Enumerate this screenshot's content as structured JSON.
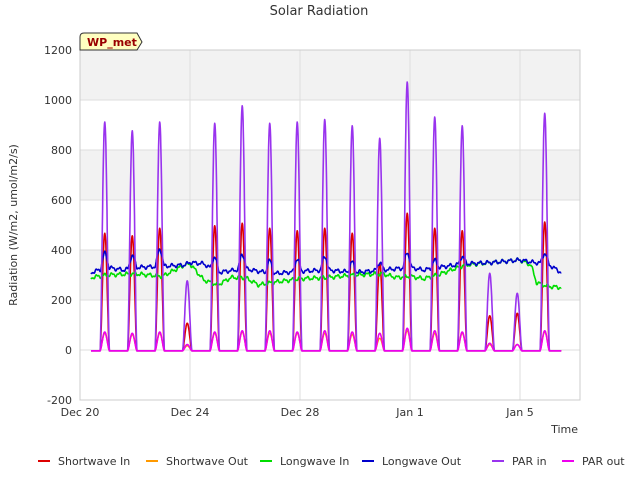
{
  "chart_data": {
    "type": "line",
    "title": "Solar Radiation",
    "xlabel": "Time",
    "ylabel": "Radiation (W/m2, umol/m2/s)",
    "station_badge": "WP_met",
    "xlim": [
      0,
      18
    ],
    "ylim": [
      -200,
      1200
    ],
    "x_ticks": [
      {
        "x": 0,
        "label": "Dec 20"
      },
      {
        "x": 4,
        "label": "Dec 24"
      },
      {
        "x": 8,
        "label": "Dec 28"
      },
      {
        "x": 12,
        "label": "Jan 1"
      },
      {
        "x": 16,
        "label": "Jan 5"
      }
    ],
    "y_ticks": [
      -200,
      0,
      200,
      400,
      600,
      800,
      1000,
      1200
    ],
    "grid": true,
    "shaded_bands": [
      [
        200,
        400
      ],
      [
        600,
        800
      ],
      [
        1000,
        1200
      ]
    ],
    "legend_placement": "bottom",
    "day_centers": [
      0.9,
      1.9,
      2.9,
      3.9,
      4.9,
      5.9,
      6.9,
      7.9,
      8.9,
      9.9,
      10.9,
      11.9,
      12.9,
      13.9,
      14.9,
      15.9,
      16.9
    ],
    "series": [
      {
        "name": "Shortwave In",
        "color": "#dd0000",
        "width": 1.6,
        "kind": "diurnal",
        "peaks": [
          470,
          460,
          490,
          110,
          500,
          510,
          490,
          480,
          490,
          470,
          350,
          550,
          490,
          480,
          140,
          150,
          515
        ]
      },
      {
        "name": "Shortwave Out",
        "color": "#ff9900",
        "width": 1.4,
        "kind": "diurnal",
        "peaks": [
          70,
          65,
          70,
          20,
          70,
          75,
          70,
          70,
          70,
          65,
          50,
          80,
          70,
          70,
          25,
          25,
          75
        ]
      },
      {
        "name": "Longwave In",
        "color": "#00dd00",
        "width": 1.6,
        "kind": "steady",
        "points": [
          [
            0.4,
            290
          ],
          [
            1.0,
            300
          ],
          [
            2.0,
            305
          ],
          [
            3.0,
            295
          ],
          [
            3.8,
            340
          ],
          [
            4.0,
            345
          ],
          [
            4.5,
            280
          ],
          [
            5.0,
            260
          ],
          [
            5.5,
            290
          ],
          [
            6.0,
            290
          ],
          [
            6.5,
            260
          ],
          [
            7.0,
            270
          ],
          [
            8.0,
            285
          ],
          [
            9.0,
            290
          ],
          [
            10.0,
            300
          ],
          [
            11.0,
            305
          ],
          [
            11.5,
            290
          ],
          [
            12.0,
            295
          ],
          [
            12.5,
            285
          ],
          [
            13.0,
            300
          ],
          [
            13.5,
            320
          ],
          [
            14.0,
            340
          ],
          [
            15.0,
            350
          ],
          [
            16.0,
            360
          ],
          [
            16.4,
            340
          ],
          [
            16.6,
            270
          ],
          [
            17.0,
            255
          ],
          [
            17.5,
            250
          ]
        ]
      },
      {
        "name": "Longwave Out",
        "color": "#0000cc",
        "width": 1.6,
        "kind": "steady",
        "points": [
          [
            0.4,
            310
          ],
          [
            1.0,
            330
          ],
          [
            1.6,
            320
          ],
          [
            2.0,
            330
          ],
          [
            3.0,
            335
          ],
          [
            3.8,
            340
          ],
          [
            4.0,
            350
          ],
          [
            4.5,
            345
          ],
          [
            5.0,
            310
          ],
          [
            6.0,
            325
          ],
          [
            6.5,
            315
          ],
          [
            7.0,
            305
          ],
          [
            8.0,
            315
          ],
          [
            9.0,
            320
          ],
          [
            10.0,
            310
          ],
          [
            11.0,
            320
          ],
          [
            12.0,
            330
          ],
          [
            12.5,
            320
          ],
          [
            13.0,
            330
          ],
          [
            14.0,
            345
          ],
          [
            15.0,
            350
          ],
          [
            16.0,
            360
          ],
          [
            16.5,
            350
          ],
          [
            17.0,
            345
          ],
          [
            17.5,
            310
          ]
        ],
        "day_bumps": [
          60,
          50,
          70,
          0,
          55,
          60,
          50,
          50,
          55,
          40,
          30,
          60,
          30,
          30,
          0,
          0,
          40
        ]
      },
      {
        "name": "PAR in",
        "color": "#9933ee",
        "width": 1.6,
        "kind": "diurnal",
        "peaks": [
          915,
          880,
          915,
          280,
          910,
          980,
          910,
          915,
          925,
          900,
          850,
          1075,
          935,
          900,
          310,
          230,
          950
        ]
      },
      {
        "name": "PAR out",
        "color": "#ee00ee",
        "width": 1.6,
        "kind": "diurnal",
        "peaks": [
          75,
          70,
          75,
          25,
          75,
          80,
          80,
          75,
          80,
          75,
          70,
          90,
          80,
          75,
          30,
          25,
          80
        ]
      }
    ]
  }
}
